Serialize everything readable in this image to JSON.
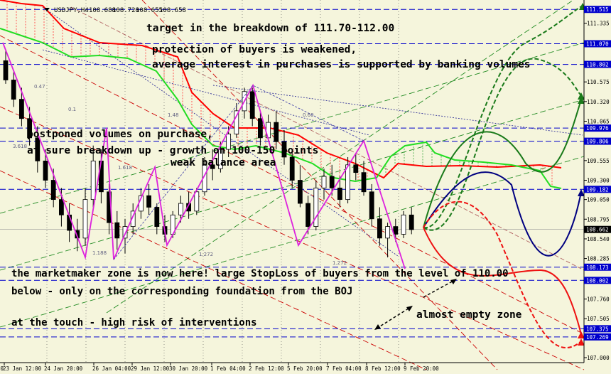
{
  "chart_data": {
    "type": "candlestick",
    "symbol": "USDJPY,H4",
    "ohlc_readout": [
      "108.688",
      "108.720",
      "108.655",
      "108.658"
    ],
    "current_price": 108.662,
    "ylim": [
      107.0,
      111.6
    ],
    "y_ticks": [
      111.335,
      111.07,
      110.802,
      110.575,
      110.32,
      110.065,
      109.806,
      109.555,
      109.3,
      109.05,
      108.795,
      108.54,
      108.285,
      108.002,
      107.76,
      107.505,
      107.269,
      107.0
    ],
    "x_ticks": [
      "00",
      "23 Jan 12:00",
      "24 Jan 20:00",
      "26 Jan 04:00",
      "29 Jan 12:00",
      "30 Jan 20:00",
      "1 Feb 04:00",
      "2 Feb 12:00",
      "5 Feb 20:00",
      "7 Feb 04:00",
      "8 Feb 12:00",
      "9 Feb 20:00"
    ],
    "levels": [
      {
        "price": 111.515,
        "label": "111.515",
        "color": "#0000cc"
      },
      {
        "price": 111.07,
        "label": "111.070",
        "color": "#0000cc"
      },
      {
        "price": 110.802,
        "label": "110.802",
        "color": "#0000cc"
      },
      {
        "price": 109.976,
        "label": "109.976",
        "color": "#0000cc"
      },
      {
        "price": 109.806,
        "label": "109.806",
        "color": "#0000cc"
      },
      {
        "price": 109.182,
        "label": "109.182",
        "color": "#0000cc"
      },
      {
        "price": 108.173,
        "label": "108.173",
        "color": "#0000cc"
      },
      {
        "price": 108.002,
        "label": "108.002",
        "color": "#0000cc"
      },
      {
        "price": 107.375,
        "label": "107.375",
        "color": "#0000cc"
      },
      {
        "price": 107.269,
        "label": "107.269",
        "color": "#0000cc"
      }
    ],
    "candles": [
      [
        110.85,
        111.0,
        110.55,
        110.6
      ],
      [
        110.6,
        110.7,
        110.25,
        110.35
      ],
      [
        110.35,
        110.5,
        110.0,
        110.1
      ],
      [
        110.1,
        110.25,
        109.75,
        109.85
      ],
      [
        109.85,
        110.0,
        109.4,
        109.55
      ],
      [
        109.55,
        109.7,
        109.2,
        109.3
      ],
      [
        109.3,
        109.45,
        108.95,
        109.05
      ],
      [
        109.05,
        109.2,
        108.7,
        108.85
      ],
      [
        108.85,
        109.0,
        108.5,
        108.65
      ],
      [
        108.65,
        108.8,
        108.38,
        108.55
      ],
      [
        108.55,
        109.2,
        108.45,
        109.05
      ],
      [
        109.05,
        109.75,
        108.95,
        109.55
      ],
      [
        109.55,
        109.7,
        109.0,
        109.15
      ],
      [
        109.15,
        109.25,
        108.6,
        108.75
      ],
      [
        108.75,
        108.9,
        108.4,
        108.55
      ],
      [
        108.55,
        108.8,
        108.35,
        108.7
      ],
      [
        108.7,
        109.0,
        108.6,
        108.9
      ],
      [
        108.9,
        109.2,
        108.8,
        109.1
      ],
      [
        109.1,
        109.25,
        108.85,
        108.95
      ],
      [
        108.95,
        109.0,
        108.6,
        108.7
      ],
      [
        108.7,
        108.85,
        108.5,
        108.6
      ],
      [
        108.6,
        108.9,
        108.55,
        108.85
      ],
      [
        108.85,
        109.1,
        108.75,
        109.0
      ],
      [
        109.0,
        109.15,
        108.8,
        108.9
      ],
      [
        108.9,
        109.2,
        108.85,
        109.15
      ],
      [
        109.15,
        109.6,
        109.1,
        109.5
      ],
      [
        109.5,
        109.7,
        109.3,
        109.45
      ],
      [
        109.45,
        109.8,
        109.4,
        109.7
      ],
      [
        109.7,
        110.0,
        109.6,
        109.9
      ],
      [
        109.9,
        110.3,
        109.85,
        110.2
      ],
      [
        110.2,
        110.5,
        110.1,
        110.45
      ],
      [
        110.45,
        110.5,
        110.0,
        110.1
      ],
      [
        110.1,
        110.2,
        109.75,
        109.85
      ],
      [
        109.85,
        110.15,
        109.8,
        110.05
      ],
      [
        110.05,
        110.2,
        109.7,
        109.8
      ],
      [
        109.8,
        109.95,
        109.5,
        109.6
      ],
      [
        109.6,
        109.7,
        109.2,
        109.3
      ],
      [
        109.3,
        109.5,
        108.95,
        109.0
      ],
      [
        109.0,
        109.1,
        108.6,
        108.7
      ],
      [
        108.7,
        109.3,
        108.65,
        109.2
      ],
      [
        109.2,
        109.45,
        109.05,
        109.35
      ],
      [
        109.35,
        109.5,
        109.1,
        109.2
      ],
      [
        109.2,
        109.35,
        108.95,
        109.05
      ],
      [
        109.05,
        109.6,
        109.0,
        109.5
      ],
      [
        109.5,
        109.65,
        109.3,
        109.4
      ],
      [
        109.4,
        109.55,
        109.1,
        109.15
      ],
      [
        109.15,
        109.25,
        108.7,
        108.8
      ],
      [
        108.8,
        108.95,
        108.45,
        108.55
      ],
      [
        108.55,
        108.75,
        108.3,
        108.7
      ],
      [
        108.7,
        108.8,
        108.5,
        108.6
      ],
      [
        108.6,
        108.9,
        108.55,
        108.85
      ],
      [
        108.85,
        108.95,
        108.6,
        108.66
      ]
    ],
    "annotations": [
      {
        "key": "target",
        "text": "target in the breakdown of 111.70-112.00"
      },
      {
        "key": "protection",
        "text": "protection of buyers is weakened,"
      },
      {
        "key": "average",
        "text": "average interest in purchases is supported by banking volumes"
      },
      {
        "key": "postponed",
        "text": "postponed volumes on purchase,"
      },
      {
        "key": "breakdown",
        "text": "at sure breakdown up - growth on 100-150 points"
      },
      {
        "key": "weak",
        "text": "weak balance area"
      },
      {
        "key": "mm_zone",
        "text": "the marketmaker zone is now here!  large StopLoss of buyers from the level of 110.00"
      },
      {
        "key": "below",
        "text": "below - only on the corresponding foundation from the BOJ"
      },
      {
        "key": "touch",
        "text": "at the touch - high risk of interventions"
      },
      {
        "key": "empty",
        "text": "almost empty zone"
      }
    ],
    "fib_labels": [
      "0.47",
      "0.1",
      "1.48",
      "0.60",
      "3.618",
      "1.618",
      "1.188",
      "1.272",
      "1.272"
    ]
  }
}
